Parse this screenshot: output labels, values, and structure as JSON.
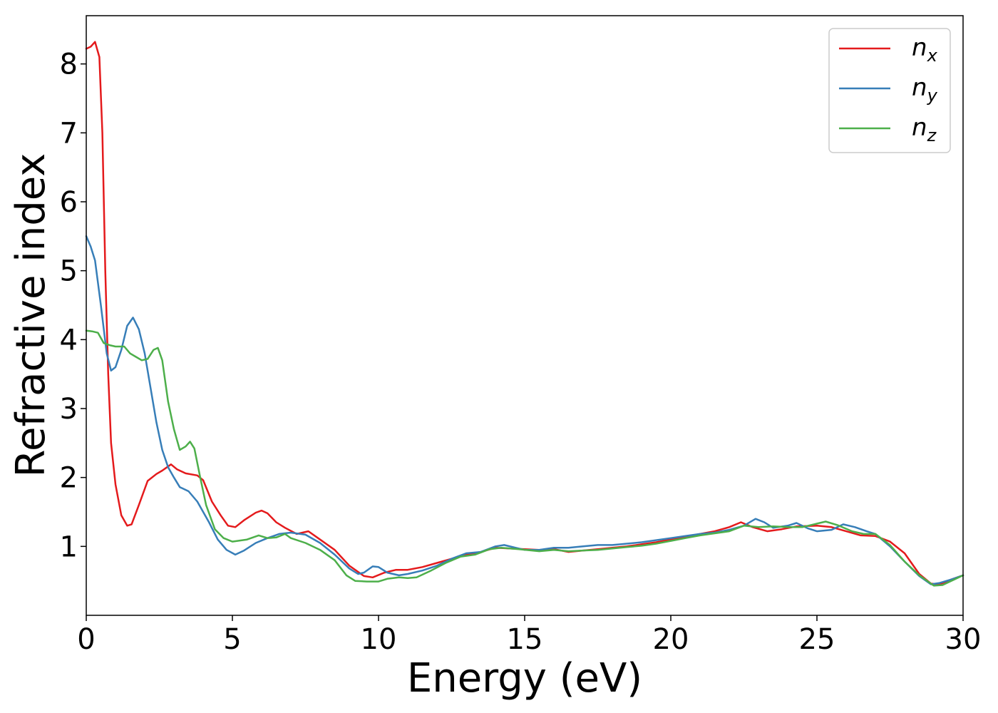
{
  "chart_data": {
    "type": "line",
    "title": "",
    "xlabel": "Energy (eV)",
    "ylabel": "Refractive index",
    "xlim": [
      0,
      30
    ],
    "ylim": [
      0,
      8.7
    ],
    "xticks": [
      0,
      5,
      10,
      15,
      20,
      25,
      30
    ],
    "yticks": [
      1,
      2,
      3,
      4,
      5,
      6,
      7,
      8
    ],
    "grid": false,
    "legend_position": "top-right",
    "series": [
      {
        "name": "n",
        "subscript": "x",
        "color": "#e41a1c",
        "points": [
          [
            0,
            8.22
          ],
          [
            0.15,
            8.25
          ],
          [
            0.3,
            8.32
          ],
          [
            0.45,
            8.1
          ],
          [
            0.55,
            7.0
          ],
          [
            0.65,
            5.0
          ],
          [
            0.75,
            3.5
          ],
          [
            0.85,
            2.5
          ],
          [
            1.0,
            1.9
          ],
          [
            1.2,
            1.45
          ],
          [
            1.4,
            1.3
          ],
          [
            1.55,
            1.32
          ],
          [
            1.8,
            1.6
          ],
          [
            2.1,
            1.95
          ],
          [
            2.4,
            2.05
          ],
          [
            2.6,
            2.1
          ],
          [
            2.9,
            2.19
          ],
          [
            3.1,
            2.12
          ],
          [
            3.4,
            2.06
          ],
          [
            3.8,
            2.03
          ],
          [
            4.0,
            1.96
          ],
          [
            4.3,
            1.65
          ],
          [
            4.6,
            1.45
          ],
          [
            4.85,
            1.3
          ],
          [
            5.1,
            1.28
          ],
          [
            5.4,
            1.38
          ],
          [
            5.8,
            1.49
          ],
          [
            6.0,
            1.52
          ],
          [
            6.2,
            1.48
          ],
          [
            6.5,
            1.35
          ],
          [
            6.8,
            1.27
          ],
          [
            7.2,
            1.18
          ],
          [
            7.6,
            1.22
          ],
          [
            8.0,
            1.1
          ],
          [
            8.5,
            0.95
          ],
          [
            9.0,
            0.72
          ],
          [
            9.5,
            0.57
          ],
          [
            9.8,
            0.55
          ],
          [
            10.2,
            0.62
          ],
          [
            10.6,
            0.66
          ],
          [
            11.0,
            0.66
          ],
          [
            11.5,
            0.7
          ],
          [
            12.0,
            0.76
          ],
          [
            12.5,
            0.82
          ],
          [
            13.0,
            0.88
          ],
          [
            13.5,
            0.92
          ],
          [
            14.0,
            0.98
          ],
          [
            14.5,
            0.97
          ],
          [
            15.0,
            0.96
          ],
          [
            15.5,
            0.95
          ],
          [
            16.0,
            0.96
          ],
          [
            16.5,
            0.92
          ],
          [
            17.0,
            0.94
          ],
          [
            17.5,
            0.96
          ],
          [
            18.0,
            0.98
          ],
          [
            18.5,
            1.0
          ],
          [
            19.0,
            1.03
          ],
          [
            19.5,
            1.06
          ],
          [
            20.0,
            1.1
          ],
          [
            20.5,
            1.14
          ],
          [
            21.0,
            1.18
          ],
          [
            21.5,
            1.22
          ],
          [
            22.0,
            1.28
          ],
          [
            22.4,
            1.35
          ],
          [
            22.8,
            1.28
          ],
          [
            23.3,
            1.22
          ],
          [
            23.8,
            1.25
          ],
          [
            24.3,
            1.29
          ],
          [
            25.0,
            1.3
          ],
          [
            25.5,
            1.28
          ],
          [
            26.0,
            1.22
          ],
          [
            26.5,
            1.16
          ],
          [
            27.0,
            1.15
          ],
          [
            27.5,
            1.07
          ],
          [
            28.0,
            0.9
          ],
          [
            28.5,
            0.6
          ],
          [
            28.9,
            0.46
          ],
          [
            29.2,
            0.45
          ],
          [
            29.6,
            0.52
          ],
          [
            30.0,
            0.58
          ]
        ]
      },
      {
        "name": "n",
        "subscript": "y",
        "color": "#377eb8",
        "points": [
          [
            0,
            5.5
          ],
          [
            0.15,
            5.35
          ],
          [
            0.3,
            5.15
          ],
          [
            0.5,
            4.5
          ],
          [
            0.7,
            3.8
          ],
          [
            0.85,
            3.55
          ],
          [
            1.0,
            3.6
          ],
          [
            1.2,
            3.85
          ],
          [
            1.4,
            4.2
          ],
          [
            1.6,
            4.32
          ],
          [
            1.8,
            4.15
          ],
          [
            2.0,
            3.8
          ],
          [
            2.2,
            3.3
          ],
          [
            2.4,
            2.8
          ],
          [
            2.6,
            2.4
          ],
          [
            2.8,
            2.15
          ],
          [
            3.0,
            2.0
          ],
          [
            3.2,
            1.86
          ],
          [
            3.5,
            1.8
          ],
          [
            3.8,
            1.65
          ],
          [
            4.2,
            1.35
          ],
          [
            4.5,
            1.1
          ],
          [
            4.8,
            0.95
          ],
          [
            5.1,
            0.88
          ],
          [
            5.4,
            0.94
          ],
          [
            5.8,
            1.05
          ],
          [
            6.2,
            1.12
          ],
          [
            6.6,
            1.18
          ],
          [
            7.0,
            1.2
          ],
          [
            7.5,
            1.17
          ],
          [
            8.0,
            1.05
          ],
          [
            8.5,
            0.88
          ],
          [
            9.0,
            0.68
          ],
          [
            9.3,
            0.6
          ],
          [
            9.5,
            0.62
          ],
          [
            9.8,
            0.71
          ],
          [
            10.0,
            0.7
          ],
          [
            10.3,
            0.62
          ],
          [
            10.7,
            0.58
          ],
          [
            11.0,
            0.6
          ],
          [
            11.5,
            0.65
          ],
          [
            12.0,
            0.72
          ],
          [
            12.5,
            0.82
          ],
          [
            13.0,
            0.9
          ],
          [
            13.5,
            0.92
          ],
          [
            14.0,
            1.0
          ],
          [
            14.3,
            1.02
          ],
          [
            14.7,
            0.98
          ],
          [
            15.0,
            0.95
          ],
          [
            15.5,
            0.95
          ],
          [
            16.0,
            0.98
          ],
          [
            16.5,
            0.98
          ],
          [
            17.0,
            1.0
          ],
          [
            17.5,
            1.02
          ],
          [
            18.0,
            1.02
          ],
          [
            18.5,
            1.04
          ],
          [
            19.0,
            1.06
          ],
          [
            19.5,
            1.09
          ],
          [
            20.0,
            1.12
          ],
          [
            20.5,
            1.15
          ],
          [
            21.0,
            1.18
          ],
          [
            21.5,
            1.2
          ],
          [
            22.0,
            1.24
          ],
          [
            22.5,
            1.3
          ],
          [
            22.9,
            1.4
          ],
          [
            23.2,
            1.35
          ],
          [
            23.5,
            1.27
          ],
          [
            24.0,
            1.3
          ],
          [
            24.3,
            1.34
          ],
          [
            24.7,
            1.26
          ],
          [
            25.0,
            1.22
          ],
          [
            25.5,
            1.24
          ],
          [
            25.9,
            1.32
          ],
          [
            26.3,
            1.28
          ],
          [
            26.7,
            1.22
          ],
          [
            27.0,
            1.18
          ],
          [
            27.5,
            1.0
          ],
          [
            28.0,
            0.78
          ],
          [
            28.5,
            0.57
          ],
          [
            28.9,
            0.45
          ],
          [
            29.2,
            0.47
          ],
          [
            29.6,
            0.52
          ],
          [
            30.0,
            0.58
          ]
        ]
      },
      {
        "name": "n",
        "subscript": "z",
        "color": "#4daf4a",
        "points": [
          [
            0,
            4.13
          ],
          [
            0.2,
            4.12
          ],
          [
            0.4,
            4.1
          ],
          [
            0.6,
            3.95
          ],
          [
            0.8,
            3.92
          ],
          [
            1.0,
            3.9
          ],
          [
            1.3,
            3.9
          ],
          [
            1.5,
            3.8
          ],
          [
            1.7,
            3.75
          ],
          [
            1.9,
            3.7
          ],
          [
            2.1,
            3.72
          ],
          [
            2.3,
            3.85
          ],
          [
            2.45,
            3.88
          ],
          [
            2.6,
            3.7
          ],
          [
            2.8,
            3.1
          ],
          [
            3.0,
            2.7
          ],
          [
            3.2,
            2.4
          ],
          [
            3.4,
            2.45
          ],
          [
            3.55,
            2.52
          ],
          [
            3.7,
            2.42
          ],
          [
            3.9,
            2.0
          ],
          [
            4.1,
            1.6
          ],
          [
            4.4,
            1.25
          ],
          [
            4.7,
            1.12
          ],
          [
            5.0,
            1.07
          ],
          [
            5.5,
            1.1
          ],
          [
            5.9,
            1.16
          ],
          [
            6.2,
            1.12
          ],
          [
            6.5,
            1.13
          ],
          [
            6.8,
            1.18
          ],
          [
            7.0,
            1.12
          ],
          [
            7.5,
            1.05
          ],
          [
            8.0,
            0.95
          ],
          [
            8.5,
            0.8
          ],
          [
            8.9,
            0.58
          ],
          [
            9.2,
            0.5
          ],
          [
            9.6,
            0.49
          ],
          [
            10.0,
            0.49
          ],
          [
            10.3,
            0.53
          ],
          [
            10.7,
            0.55
          ],
          [
            11.0,
            0.54
          ],
          [
            11.3,
            0.55
          ],
          [
            11.8,
            0.65
          ],
          [
            12.3,
            0.76
          ],
          [
            12.8,
            0.85
          ],
          [
            13.3,
            0.88
          ],
          [
            13.8,
            0.96
          ],
          [
            14.2,
            0.98
          ],
          [
            14.8,
            0.96
          ],
          [
            15.5,
            0.93
          ],
          [
            16.0,
            0.95
          ],
          [
            16.5,
            0.93
          ],
          [
            17.0,
            0.94
          ],
          [
            17.5,
            0.95
          ],
          [
            18.0,
            0.97
          ],
          [
            18.5,
            0.99
          ],
          [
            19.0,
            1.01
          ],
          [
            19.5,
            1.04
          ],
          [
            20.0,
            1.08
          ],
          [
            20.5,
            1.12
          ],
          [
            21.0,
            1.16
          ],
          [
            21.5,
            1.19
          ],
          [
            22.0,
            1.22
          ],
          [
            22.5,
            1.3
          ],
          [
            23.0,
            1.28
          ],
          [
            23.5,
            1.29
          ],
          [
            24.0,
            1.28
          ],
          [
            24.5,
            1.28
          ],
          [
            25.0,
            1.33
          ],
          [
            25.3,
            1.36
          ],
          [
            25.7,
            1.31
          ],
          [
            26.2,
            1.22
          ],
          [
            26.6,
            1.18
          ],
          [
            27.0,
            1.18
          ],
          [
            27.5,
            1.02
          ],
          [
            28.0,
            0.78
          ],
          [
            28.5,
            0.58
          ],
          [
            29.0,
            0.43
          ],
          [
            29.3,
            0.44
          ],
          [
            29.7,
            0.52
          ],
          [
            30.0,
            0.58
          ]
        ]
      }
    ]
  }
}
